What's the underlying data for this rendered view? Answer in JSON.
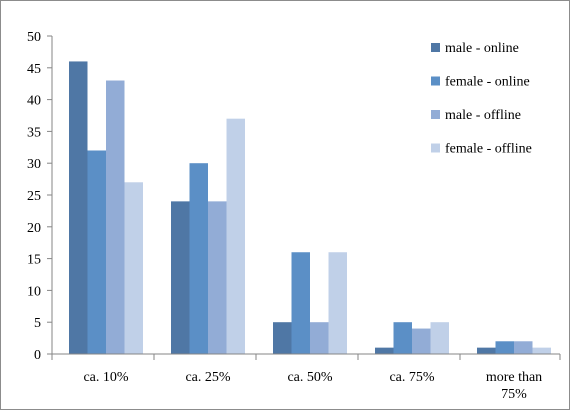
{
  "chart_data": {
    "type": "bar",
    "title": "",
    "xlabel": "",
    "ylabel": "",
    "ylim": [
      0,
      50
    ],
    "yticks": [
      0,
      5,
      10,
      15,
      20,
      25,
      30,
      35,
      40,
      45,
      50
    ],
    "grid": false,
    "legend_position": "top-right",
    "categories": [
      "ca. 10%",
      "ca. 25%",
      "ca. 50%",
      "ca. 75%",
      "more than 75%"
    ],
    "category_label_lines": [
      [
        "ca. 10%"
      ],
      [
        "ca. 25%"
      ],
      [
        "ca. 50%"
      ],
      [
        "ca. 75%"
      ],
      [
        "more than",
        "75%"
      ]
    ],
    "series": [
      {
        "name": "male - online",
        "color": "#4f77a5",
        "values": [
          46,
          24,
          5,
          1,
          1
        ]
      },
      {
        "name": "female - online",
        "color": "#5b8fc6",
        "values": [
          32,
          30,
          16,
          5,
          2
        ]
      },
      {
        "name": "male - offline",
        "color": "#92acd6",
        "values": [
          43,
          24,
          5,
          4,
          2
        ]
      },
      {
        "name": "female - offline",
        "color": "#c0d0e8",
        "values": [
          27,
          37,
          16,
          5,
          1
        ]
      }
    ]
  }
}
